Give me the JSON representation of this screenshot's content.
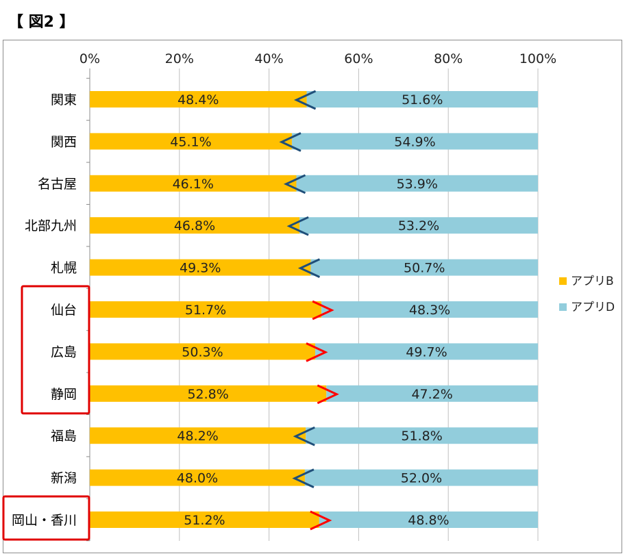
{
  "figure_title": "【 図2 】",
  "colors": {
    "series_b": "#FFC000",
    "series_d": "#92CDDC",
    "arrow_lt": "#1F4E79",
    "arrow_gt": "#FF0000",
    "highlight": "#E00000"
  },
  "chart_data": {
    "type": "bar",
    "orientation": "horizontal-stacked-100",
    "title": "",
    "xlabel": "",
    "ylabel": "",
    "xlim": [
      0,
      100
    ],
    "x_ticks": [
      "0%",
      "20%",
      "40%",
      "60%",
      "80%",
      "100%"
    ],
    "grid": true,
    "legend_position": "right",
    "categories": [
      "関東",
      "関西",
      "名古屋",
      "北部九州",
      "札幌",
      "仙台",
      "広島",
      "静岡",
      "福島",
      "新潟",
      "岡山・香川"
    ],
    "series": [
      {
        "name": "アプリB",
        "values": [
          48.4,
          45.1,
          46.1,
          46.8,
          49.3,
          51.7,
          50.3,
          52.8,
          48.2,
          48.0,
          51.2
        ],
        "labels": [
          "48.4%",
          "45.1%",
          "46.1%",
          "46.8%",
          "49.3%",
          "51.7%",
          "50.3%",
          "52.8%",
          "48.2%",
          "48.0%",
          "51.2%"
        ]
      },
      {
        "name": "アプリD",
        "values": [
          51.6,
          54.9,
          53.9,
          53.2,
          50.7,
          48.3,
          49.7,
          47.2,
          51.8,
          52.0,
          48.8
        ],
        "labels": [
          "51.6%",
          "54.9%",
          "53.9%",
          "53.2%",
          "50.7%",
          "48.3%",
          "49.7%",
          "47.2%",
          "51.8%",
          "52.0%",
          "48.8%"
        ]
      }
    ],
    "comparison_markers": [
      "<",
      "<",
      "<",
      "<",
      "<",
      ">",
      ">",
      ">",
      "<",
      "<",
      ">"
    ],
    "highlighted_groups": [
      [
        5,
        6,
        7
      ],
      [
        10
      ]
    ]
  }
}
